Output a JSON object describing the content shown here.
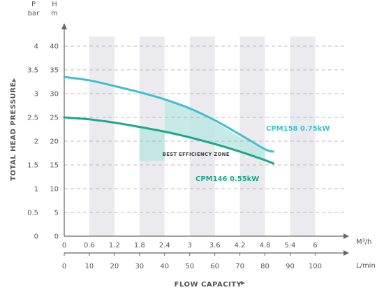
{
  "chart_data": {
    "type": "line",
    "title": "",
    "xlabel": "FLOW CAPACITY",
    "ylabel": "TOTAL HEAD PRESSURE",
    "x_units": [
      "M³/h",
      "L/min"
    ],
    "y_units": [
      "P bar",
      "H m"
    ],
    "xlim_m3h": [
      0,
      6.6
    ],
    "ylim_m": [
      0,
      42
    ],
    "x_ticks_m3h": [
      "0",
      "0.6",
      "1.2",
      "1.8",
      "2.4",
      "3",
      "3.6",
      "4.2",
      "4.8",
      "5.4",
      "6"
    ],
    "x_ticks_lmin": [
      "0",
      "10",
      "20",
      "30",
      "40",
      "50",
      "60",
      "70",
      "80",
      "90",
      "100"
    ],
    "y_ticks_m": [
      "0",
      "5",
      "10",
      "15",
      "20",
      "25",
      "30",
      "35",
      "40"
    ],
    "y_ticks_bar": [
      "0",
      "0.5",
      "1",
      "1.5",
      "2",
      "2.5",
      "3",
      "3.5",
      "4"
    ],
    "grid": true,
    "series": [
      {
        "name": "CPM158 0.75kW",
        "color": "#3dbfd0",
        "x": [
          0,
          0.6,
          1.2,
          1.8,
          2.4,
          3.0,
          3.6,
          4.2,
          4.8,
          5.0
        ],
        "y": [
          33.5,
          32.7,
          31.5,
          30.2,
          28.7,
          26.8,
          24.3,
          21.0,
          17.3,
          18.0
        ]
      },
      {
        "name": "CPM146 0.55kW",
        "color": "#1aa889",
        "x": [
          0,
          0.6,
          1.2,
          1.8,
          2.4,
          3.0,
          3.6,
          4.2,
          4.8,
          5.0
        ],
        "y": [
          25.0,
          24.6,
          23.9,
          23.0,
          22.0,
          20.8,
          19.4,
          17.8,
          16.0,
          15.3
        ]
      }
    ],
    "annotations": [
      {
        "text": "BEST EFFICIENCY ZONE",
        "x_range": [
          1.8,
          4.8
        ],
        "color": "#bde6e2"
      }
    ]
  }
}
